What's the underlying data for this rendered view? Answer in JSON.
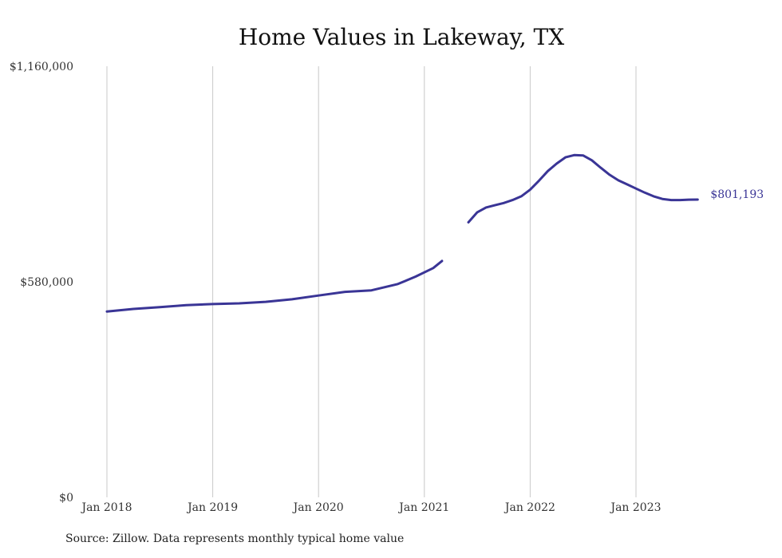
{
  "chart_data": {
    "type": "line",
    "title": "Home Values in Lakeway, TX",
    "xlabel": "",
    "ylabel": "",
    "ylim": [
      0,
      1160000
    ],
    "x_range": [
      "2018-01",
      "2024-01"
    ],
    "y_ticks": [
      "$0",
      "$580,000",
      "$1,160,000"
    ],
    "y_tick_values": [
      0,
      580000,
      1160000
    ],
    "x_ticks": [
      "Jan 2018",
      "Jan 2019",
      "Jan 2020",
      "Jan 2021",
      "Jan 2022",
      "Jan 2023"
    ],
    "x_tick_values": [
      "2018-01",
      "2019-01",
      "2020-01",
      "2021-01",
      "2022-01",
      "2023-01"
    ],
    "grid": "vertical",
    "end_label": "$801,193",
    "line_color": "#3a3596",
    "series": [
      {
        "name": "",
        "segments": [
          {
            "x": [
              "2018-01",
              "2018-04",
              "2018-07",
              "2018-10",
              "2019-01",
              "2019-04",
              "2019-07",
              "2019-10",
              "2020-01",
              "2020-04",
              "2020-07",
              "2020-10",
              "2020-12",
              "2021-02",
              "2021-03"
            ],
            "values": [
              500000,
              507000,
              512000,
              517000,
              520000,
              522000,
              526000,
              533000,
              543000,
              553000,
              557000,
              574000,
              594000,
              617000,
              636000
            ]
          },
          {
            "x": [
              "2021-06",
              "2021-07",
              "2021-08",
              "2021-09",
              "2021-10",
              "2021-11",
              "2021-12",
              "2022-01",
              "2022-02",
              "2022-03",
              "2022-04",
              "2022-05",
              "2022-06",
              "2022-07",
              "2022-08",
              "2022-09",
              "2022-10",
              "2022-11",
              "2022-12",
              "2023-01",
              "2023-02",
              "2023-03",
              "2023-04",
              "2023-05",
              "2023-06",
              "2023-07",
              "2023-08"
            ],
            "values": [
              740000,
              767000,
              780000,
              786000,
              792000,
              800000,
              810000,
              828000,
              852000,
              878000,
              898000,
              915000,
              921000,
              920000,
              907000,
              887000,
              868000,
              853000,
              842000,
              831000,
              820000,
              810000,
              803000,
              800000,
              800000,
              801000,
              801193
            ]
          }
        ]
      }
    ]
  },
  "source": "Source: Zillow. Data represents monthly typical home value"
}
